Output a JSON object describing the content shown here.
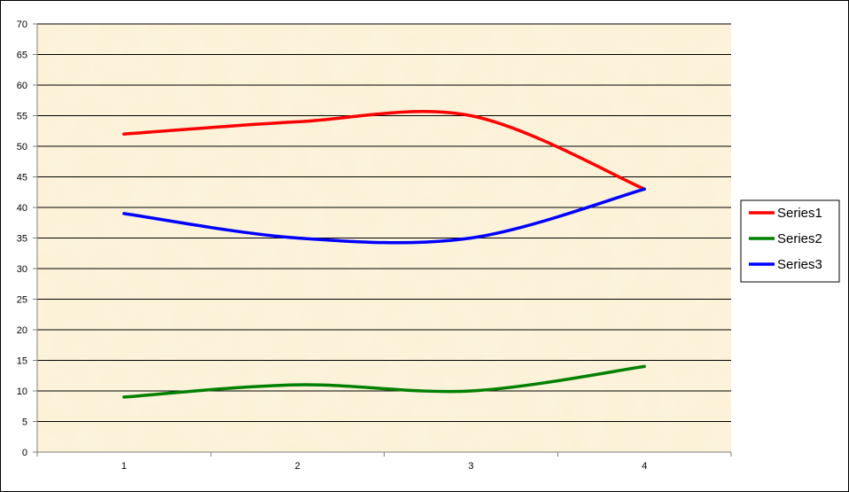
{
  "chart_data": {
    "type": "line",
    "smooth": true,
    "categories": [
      "1",
      "2",
      "3",
      "4"
    ],
    "ylim": [
      0,
      70
    ],
    "yticks": [
      0,
      5,
      10,
      15,
      20,
      25,
      30,
      35,
      40,
      45,
      50,
      55,
      60,
      65,
      70
    ],
    "grid": "horizontal",
    "legend": "right",
    "plot_background": "#fbf1d5",
    "series": [
      {
        "name": "Series1",
        "color": "#ff0000",
        "values": [
          52,
          54,
          55,
          43
        ]
      },
      {
        "name": "Series2",
        "color": "#008000",
        "values": [
          9,
          11,
          10,
          14
        ]
      },
      {
        "name": "Series3",
        "color": "#0000ff",
        "values": [
          39,
          35,
          35,
          43
        ]
      }
    ]
  }
}
